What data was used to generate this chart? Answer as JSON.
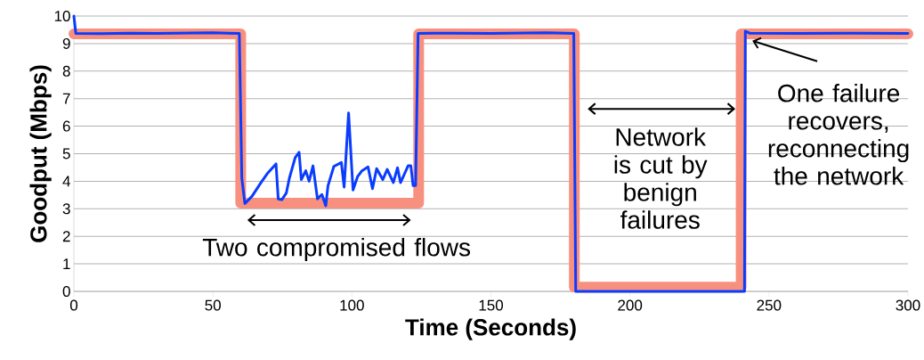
{
  "chart_data": {
    "type": "line",
    "xlabel": "Time (Seconds)",
    "ylabel": "Goodput (Mbps)",
    "xlim": [
      0,
      300
    ],
    "ylim": [
      0,
      10
    ],
    "xticks": [
      0,
      50,
      100,
      150,
      200,
      250,
      300
    ],
    "yticks": [
      0,
      1,
      2,
      3,
      4,
      5,
      6,
      7,
      8,
      9,
      10
    ],
    "grid": "y",
    "marker": "none",
    "line_style": "solid",
    "series": [
      {
        "color": "#f8907f",
        "x": [
          0,
          60,
          60,
          124,
          124,
          180,
          180,
          240,
          240,
          300
        ],
        "values": [
          9.35,
          9.35,
          3.2,
          3.2,
          9.35,
          9.35,
          0.15,
          0.15,
          9.35,
          9.35
        ]
      },
      {
        "color": "#0a3cff",
        "x": [
          0,
          0.7,
          10,
          20,
          30,
          40,
          50,
          59.5,
          60.4,
          61.5,
          64.1,
          67.3,
          69.5,
          72.7,
          73.5,
          74.8,
          76.4,
          77.5,
          79.6,
          81.0,
          81.8,
          83.4,
          84.6,
          86.0,
          87.6,
          89.2,
          90.6,
          91.4,
          93.5,
          96.2,
          97.2,
          98.8,
          100.4,
          102.0,
          103.6,
          105.8,
          107.4,
          108.9,
          111.1,
          112.7,
          114.9,
          116.4,
          117.5,
          120.2,
          121.2,
          122.0,
          122.9,
          123.8,
          130,
          150,
          170,
          179.8,
          180.5,
          241.2,
          241.5,
          243,
          260,
          280,
          300
        ],
        "values": [
          10,
          9.37,
          9.36,
          9.38,
          9.37,
          9.38,
          9.39,
          9.37,
          4.11,
          3.19,
          3.46,
          3.95,
          4.27,
          4.63,
          3.36,
          3.33,
          3.57,
          4.11,
          4.86,
          5.05,
          4.06,
          4.38,
          4.0,
          4.56,
          3.36,
          3.52,
          3.11,
          3.84,
          4.54,
          4.68,
          3.79,
          6.48,
          3.68,
          4.16,
          4.38,
          4.52,
          3.73,
          4.46,
          4.06,
          4.43,
          3.95,
          4.49,
          3.95,
          4.56,
          4.56,
          3.84,
          3.84,
          9.37,
          9.38,
          9.37,
          9.39,
          9.37,
          0,
          0,
          9.45,
          9.38,
          9.37,
          9.38,
          9.37
        ]
      }
    ],
    "annotations": [
      "Two compromised flows",
      "Network is cut by benign failures",
      {
        "text": "One failure recovers, reconnecting the network",
        "x": 244,
        "y": 9.1
      }
    ]
  }
}
